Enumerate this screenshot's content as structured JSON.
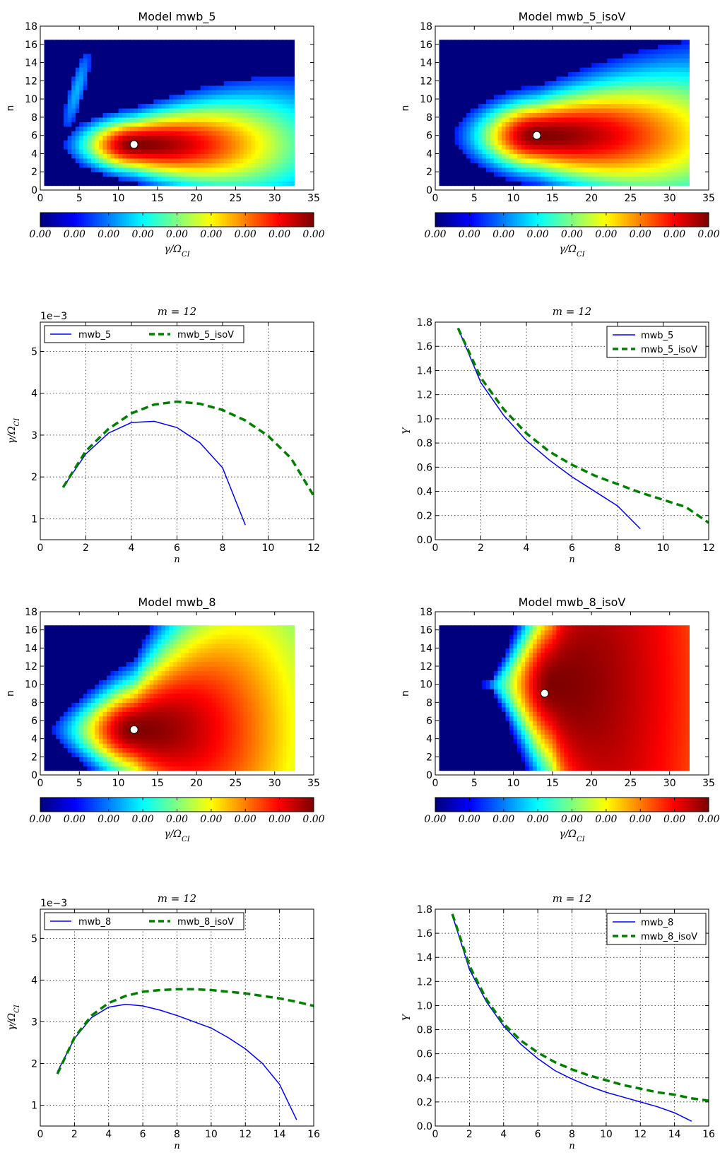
{
  "jet": [
    "#00007f",
    "#0000ff",
    "#007fff",
    "#00ffff",
    "#7fff7f",
    "#ffff00",
    "#ff7f00",
    "#ff0000",
    "#7f0000"
  ],
  "chart_data": [
    {
      "id": "hm1",
      "type": "heatmap",
      "title": "Model mwb_5",
      "ylabel": "n",
      "xlabel": "",
      "xlim": [
        0,
        35
      ],
      "ylim": [
        0,
        18
      ],
      "xticks": [
        "0",
        "5",
        "10",
        "15",
        "20",
        "25",
        "30",
        "35"
      ],
      "yticks": [
        "0",
        "2",
        "4",
        "6",
        "8",
        "10",
        "12",
        "14",
        "16",
        "18"
      ],
      "data_extent": {
        "x": [
          0.5,
          32.5
        ],
        "y": [
          0.5,
          16.5
        ]
      },
      "field": {
        "peak": [
          12,
          5
        ],
        "sx_left": 7,
        "sx_right": 24,
        "sy": 3.2,
        "yslope": 0.07,
        "cutoff": 0.2,
        "streak": true
      },
      "marker": {
        "m": 12,
        "n": 5
      },
      "colorbar": {
        "ticks": [
          "0.00",
          "0.00",
          "0.00",
          "0.00",
          "0.00",
          "0.00",
          "0.00",
          "0.00",
          "0.00"
        ],
        "label": "γ/Ω_CI"
      }
    },
    {
      "id": "hm2",
      "type": "heatmap",
      "title": "Model mwb_5_isoV",
      "ylabel": "n",
      "xlabel": "",
      "xlim": [
        0,
        35
      ],
      "ylim": [
        0,
        18
      ],
      "xticks": [
        "0",
        "5",
        "10",
        "15",
        "20",
        "25",
        "30",
        "35"
      ],
      "yticks": [
        "0",
        "2",
        "4",
        "6",
        "8",
        "10",
        "12",
        "14",
        "16",
        "18"
      ],
      "data_extent": {
        "x": [
          0.5,
          32.5
        ],
        "y": [
          0.5,
          16.5
        ]
      },
      "field": {
        "peak": [
          13,
          6
        ],
        "sx_left": 8,
        "sx_right": 30,
        "sy": 4.2,
        "yslope": 0.06,
        "cutoff": 0.18,
        "streak": false
      },
      "marker": {
        "m": 13,
        "n": 6
      },
      "colorbar": {
        "ticks": [
          "0.00",
          "0.00",
          "0.00",
          "0.00",
          "0.00",
          "0.00",
          "0.00",
          "0.00",
          "0.00"
        ],
        "label": "γ/Ω_CI"
      }
    },
    {
      "id": "ln1",
      "type": "line",
      "title": "m = 12",
      "xlabel": "n",
      "ylabel": "γ/Ω_CI",
      "offset_text": "1e−3",
      "xlim": [
        0,
        12
      ],
      "ylim": [
        0.5,
        5.7
      ],
      "xticks": [
        0,
        2,
        4,
        6,
        8,
        10,
        12
      ],
      "yticks": [
        1,
        2,
        3,
        4,
        5
      ],
      "legend": {
        "position": "top-left",
        "columns": 2
      },
      "series": [
        {
          "name": "mwb_5",
          "color": "#0000ff",
          "dash": "solid",
          "x": [
            1,
            2,
            3,
            4,
            5,
            6,
            7,
            8,
            9
          ],
          "y": [
            1.75,
            2.55,
            3.05,
            3.3,
            3.33,
            3.18,
            2.82,
            2.22,
            0.85
          ]
        },
        {
          "name": "mwb_5_isoV",
          "color": "#007f00",
          "dash": "dashed",
          "x": [
            1,
            2,
            3,
            4,
            5,
            6,
            7,
            8,
            9,
            10,
            11,
            12
          ],
          "y": [
            1.75,
            2.62,
            3.15,
            3.52,
            3.73,
            3.8,
            3.75,
            3.6,
            3.35,
            2.98,
            2.45,
            1.55
          ]
        }
      ]
    },
    {
      "id": "ln2",
      "type": "line",
      "title": "m = 12",
      "xlabel": "n",
      "ylabel": "Y",
      "xlim": [
        0,
        12
      ],
      "ylim": [
        0,
        1.8
      ],
      "xticks": [
        0,
        2,
        4,
        6,
        8,
        10,
        12
      ],
      "yticks": [
        0.0,
        0.2,
        0.4,
        0.6,
        0.8,
        1.0,
        1.2,
        1.4,
        1.6,
        1.8
      ],
      "legend": {
        "position": "top-right",
        "columns": 1
      },
      "series": [
        {
          "name": "mwb_5",
          "color": "#0000ff",
          "dash": "solid",
          "x": [
            1,
            2,
            3,
            4,
            5,
            6,
            7,
            8,
            9
          ],
          "y": [
            1.75,
            1.3,
            1.03,
            0.82,
            0.66,
            0.52,
            0.4,
            0.28,
            0.09
          ]
        },
        {
          "name": "mwb_5_isoV",
          "color": "#007f00",
          "dash": "dashed",
          "x": [
            1,
            2,
            3,
            4,
            5,
            6,
            7,
            8,
            9,
            10,
            11,
            12
          ],
          "y": [
            1.75,
            1.34,
            1.08,
            0.88,
            0.73,
            0.62,
            0.53,
            0.46,
            0.39,
            0.33,
            0.27,
            0.14
          ]
        }
      ]
    },
    {
      "id": "hm3",
      "type": "heatmap",
      "title": "Model mwb_8",
      "ylabel": "n",
      "xlabel": "",
      "xlim": [
        0,
        35
      ],
      "ylim": [
        0,
        18
      ],
      "xticks": [
        "0",
        "5",
        "10",
        "15",
        "20",
        "25",
        "30",
        "35"
      ],
      "yticks": [
        "0",
        "2",
        "4",
        "6",
        "8",
        "10",
        "12",
        "14",
        "16",
        "18"
      ],
      "data_extent": {
        "x": [
          0.5,
          32.5
        ],
        "y": [
          0.5,
          16.5
        ]
      },
      "field": {
        "peak": [
          12,
          5
        ],
        "sx_left": 8,
        "sx_right": 30,
        "sy": 6,
        "yslope": 0.2,
        "cutoff": 0.18,
        "streak": false
      },
      "marker": {
        "m": 12,
        "n": 5
      },
      "colorbar": {
        "ticks": [
          "0.00",
          "0.00",
          "0.00",
          "0.00",
          "0.00",
          "0.00",
          "0.00",
          "0.00",
          "0.00"
        ],
        "label": "γ/Ω_CI"
      }
    },
    {
      "id": "hm4",
      "type": "heatmap",
      "title": "Model mwb_8_isoV",
      "ylabel": "n",
      "xlabel": "",
      "xlim": [
        0,
        35
      ],
      "ylim": [
        0,
        18
      ],
      "xticks": [
        "0",
        "5",
        "10",
        "15",
        "20",
        "25",
        "30",
        "35"
      ],
      "yticks": [
        "0",
        "2",
        "4",
        "6",
        "8",
        "10",
        "12",
        "14",
        "16",
        "18"
      ],
      "data_extent": {
        "x": [
          0.5,
          32.5
        ],
        "y": [
          0.5,
          16.5
        ]
      },
      "field": {
        "peak": [
          15,
          10
        ],
        "sx_left": 7,
        "sx_right": 40,
        "sy": 12,
        "yslope": 0.4,
        "cutoff": 0.14,
        "streak": false
      },
      "marker": {
        "m": 14,
        "n": 9
      },
      "colorbar": {
        "ticks": [
          "0.00",
          "0.00",
          "0.00",
          "0.00",
          "0.00",
          "0.00",
          "0.00",
          "0.00",
          "0.00"
        ],
        "label": "γ/Ω_CI"
      }
    },
    {
      "id": "ln3",
      "type": "line",
      "title": "m = 12",
      "xlabel": "n",
      "ylabel": "γ/Ω_CI",
      "offset_text": "1e−3",
      "xlim": [
        0,
        16
      ],
      "ylim": [
        0.5,
        5.7
      ],
      "xticks": [
        0,
        2,
        4,
        6,
        8,
        10,
        12,
        14,
        16
      ],
      "yticks": [
        1,
        2,
        3,
        4,
        5
      ],
      "legend": {
        "position": "top-left",
        "columns": 2
      },
      "series": [
        {
          "name": "mwb_8",
          "color": "#0000ff",
          "dash": "solid",
          "x": [
            1,
            2,
            3,
            4,
            5,
            6,
            7,
            8,
            9,
            10,
            11,
            12,
            13,
            14,
            15
          ],
          "y": [
            1.8,
            2.6,
            3.1,
            3.35,
            3.42,
            3.38,
            3.28,
            3.15,
            3.0,
            2.85,
            2.62,
            2.35,
            2.0,
            1.5,
            0.65
          ]
        },
        {
          "name": "mwb_8_isoV",
          "color": "#007f00",
          "dash": "dashed",
          "x": [
            1,
            2,
            3,
            4,
            5,
            6,
            7,
            8,
            9,
            10,
            11,
            12,
            13,
            14,
            15,
            16
          ],
          "y": [
            1.75,
            2.62,
            3.15,
            3.45,
            3.62,
            3.72,
            3.76,
            3.78,
            3.78,
            3.76,
            3.72,
            3.68,
            3.62,
            3.56,
            3.48,
            3.38
          ]
        }
      ]
    },
    {
      "id": "ln4",
      "type": "line",
      "title": "m = 12",
      "xlabel": "n",
      "ylabel": "Y",
      "xlim": [
        0,
        16
      ],
      "ylim": [
        0,
        1.8
      ],
      "xticks": [
        0,
        2,
        4,
        6,
        8,
        10,
        12,
        14,
        16
      ],
      "yticks": [
        0.0,
        0.2,
        0.4,
        0.6,
        0.8,
        1.0,
        1.2,
        1.4,
        1.6,
        1.8
      ],
      "legend": {
        "position": "top-right",
        "columns": 1
      },
      "series": [
        {
          "name": "mwb_8",
          "color": "#0000ff",
          "dash": "solid",
          "x": [
            1,
            2,
            3,
            4,
            5,
            6,
            7,
            8,
            9,
            10,
            11,
            12,
            13,
            14,
            15
          ],
          "y": [
            1.75,
            1.3,
            1.03,
            0.83,
            0.68,
            0.56,
            0.46,
            0.39,
            0.33,
            0.28,
            0.24,
            0.2,
            0.16,
            0.11,
            0.04
          ]
        },
        {
          "name": "mwb_8_isoV",
          "color": "#007f00",
          "dash": "dashed",
          "x": [
            1,
            2,
            3,
            4,
            5,
            6,
            7,
            8,
            9,
            10,
            11,
            12,
            13,
            14,
            15,
            16
          ],
          "y": [
            1.76,
            1.33,
            1.05,
            0.85,
            0.71,
            0.61,
            0.53,
            0.47,
            0.42,
            0.38,
            0.34,
            0.31,
            0.28,
            0.26,
            0.23,
            0.21
          ]
        }
      ]
    }
  ]
}
